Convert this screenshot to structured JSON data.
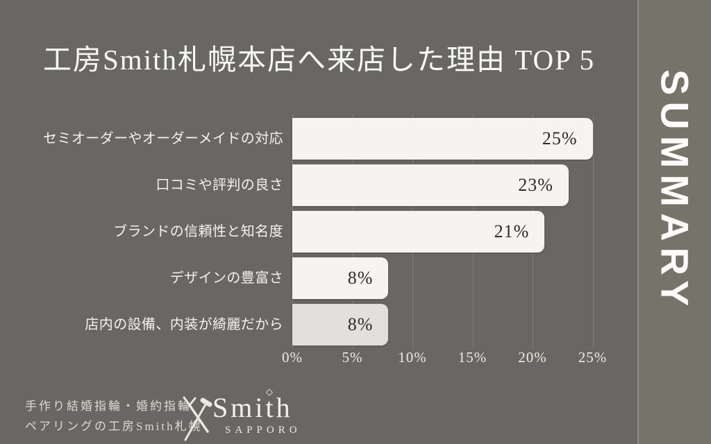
{
  "title": "工房Smith札幌本店へ来店した理由 TOP 5",
  "side_band": {
    "label": "SUMMARY",
    "background": "#75736a",
    "divider_color": "#8f8d85"
  },
  "colors": {
    "slide_background": "#696763",
    "title_text": "#fbf9f6"
  },
  "chart_data": {
    "type": "bar",
    "orientation": "horizontal",
    "title": "工房Smith札幌本店へ来店した理由 TOP 5",
    "categories": [
      "セミオーダーやオーダーメイドの対応",
      "口コミや評判の良さ",
      "ブランドの信頼性と知名度",
      "デザインの豊富さ",
      "店内の設備、内装が綺麗だから"
    ],
    "values": [
      25,
      23,
      21,
      8,
      8
    ],
    "value_labels": [
      "25%",
      "23%",
      "21%",
      "8%",
      "8%"
    ],
    "x_ticks": [
      {
        "value": 0,
        "label": "0%"
      },
      {
        "value": 5,
        "label": "5%"
      },
      {
        "value": 10,
        "label": "10%"
      },
      {
        "value": 15,
        "label": "15%"
      },
      {
        "value": 20,
        "label": "20%"
      },
      {
        "value": 25,
        "label": "25%"
      }
    ],
    "xlim": [
      0,
      25
    ],
    "grid": true,
    "legend": false,
    "colors": {
      "bar": "#f6f3f0",
      "last_bar": "#e2e0dc",
      "value_text": "#2e2c28",
      "category_text": "#f4f2ee",
      "tick_text": "#edebe6",
      "gridline": "rgba(255,255,255,0.14)"
    }
  },
  "footer": {
    "tagline_line1": "手作り結婚指輪・婚約指輪",
    "tagline_line2": "ペアリングの工房Smith札幌",
    "logo": {
      "name": "Smith",
      "sub": "SAPPORO",
      "diamond_glyph": "◇",
      "icon": "crossed-tools-icon"
    }
  }
}
